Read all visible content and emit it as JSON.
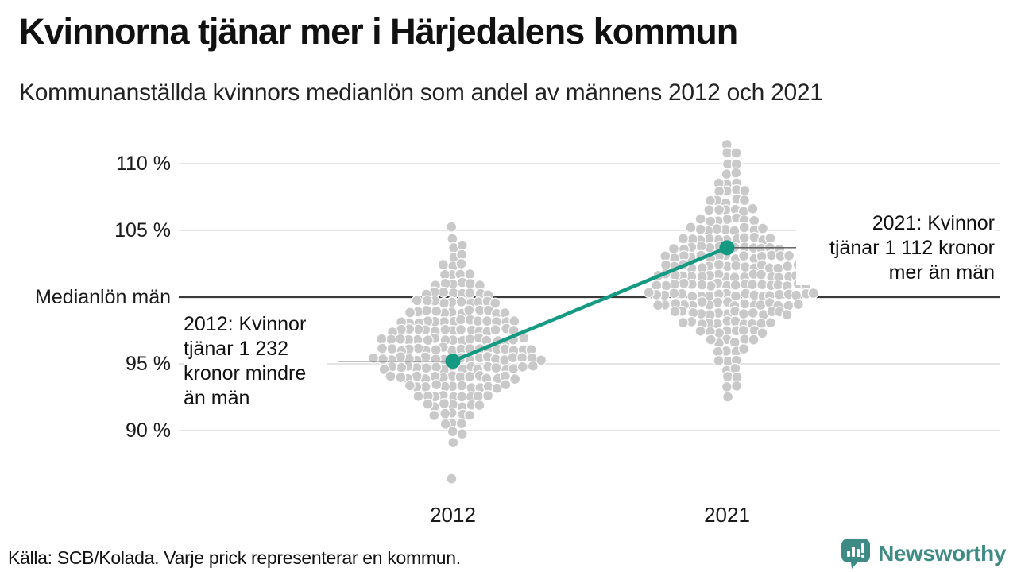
{
  "header": {
    "title": "Kvinnorna tjänar mer i Härjedalens kommun",
    "subtitle": "Kommunanställda kvinnors medianlön som andel av männens 2012 och 2021"
  },
  "chart_data": {
    "type": "beeswarm",
    "title": "Kvinnorna tjänar mer i Härjedalens kommun",
    "subtitle": "Kommunanställda kvinnors medianlön som andel av männens 2012 och 2021",
    "unit": "%",
    "x_categories": [
      "2012",
      "2021"
    ],
    "y_axis": {
      "ticks": [
        {
          "value": 110,
          "label": "110 %"
        },
        {
          "value": 105,
          "label": "105 %"
        },
        {
          "value": 100,
          "label": "Medianlön män"
        },
        {
          "value": 95,
          "label": "95 %"
        },
        {
          "value": 90,
          "label": "90 %"
        }
      ],
      "baseline_value": 100,
      "range": [
        86,
        112.5
      ],
      "grid": true
    },
    "highlight": {
      "name": "Härjedalens kommun",
      "points": [
        {
          "year": "2012",
          "value": 95.2,
          "annotation": "2012: Kvinnor\ntjänar 1 232\nkronor mindre\nän män"
        },
        {
          "year": "2021",
          "value": 103.7,
          "annotation": "2021: Kvinnor\ntjänar 1 112 kronor\nmer än män"
        }
      ]
    },
    "distributions": {
      "2012": [
        [
          105.2,
          1
        ],
        [
          104.5,
          1
        ],
        [
          103.8,
          2
        ],
        [
          103.1,
          2
        ],
        [
          102.4,
          3
        ],
        [
          101.7,
          4
        ],
        [
          101.0,
          6
        ],
        [
          100.3,
          8
        ],
        [
          99.6,
          10
        ],
        [
          98.9,
          12
        ],
        [
          98.2,
          14
        ],
        [
          97.5,
          15
        ],
        [
          96.8,
          17
        ],
        [
          96.1,
          18
        ],
        [
          95.4,
          20
        ],
        [
          94.7,
          18
        ],
        [
          94.0,
          15
        ],
        [
          93.3,
          12
        ],
        [
          92.6,
          9
        ],
        [
          91.9,
          7
        ],
        [
          91.2,
          5
        ],
        [
          90.5,
          3
        ],
        [
          89.8,
          2
        ],
        [
          89.1,
          1
        ],
        [
          86.4,
          1
        ]
      ],
      "2021": [
        [
          111.4,
          1
        ],
        [
          110.7,
          2
        ],
        [
          110.0,
          2
        ],
        [
          109.3,
          2
        ],
        [
          108.6,
          3
        ],
        [
          107.9,
          4
        ],
        [
          107.2,
          5
        ],
        [
          106.5,
          6
        ],
        [
          105.8,
          7
        ],
        [
          105.1,
          9
        ],
        [
          104.4,
          11
        ],
        [
          103.7,
          13
        ],
        [
          103.0,
          15
        ],
        [
          102.3,
          16
        ],
        [
          101.6,
          17
        ],
        [
          100.9,
          18
        ],
        [
          100.2,
          20
        ],
        [
          99.5,
          17
        ],
        [
          98.8,
          14
        ],
        [
          98.1,
          11
        ],
        [
          97.4,
          8
        ],
        [
          96.7,
          6
        ],
        [
          96.0,
          4
        ],
        [
          95.3,
          3
        ],
        [
          94.6,
          2
        ],
        [
          93.9,
          2
        ],
        [
          93.2,
          2
        ],
        [
          92.5,
          1
        ]
      ]
    }
  },
  "colors": {
    "accent": "#149a82",
    "dot": "#c9c9c9",
    "dot_stroke": "#ffffff",
    "grid": "#dcdcdc",
    "baseline": "#3a3a3a",
    "leader": "#555555",
    "brand": "#3d8b84"
  },
  "footer": {
    "source": "Källa: SCB/Kolada. Varje prick representerar en kommun.",
    "brand_name": "Newsworthy"
  }
}
